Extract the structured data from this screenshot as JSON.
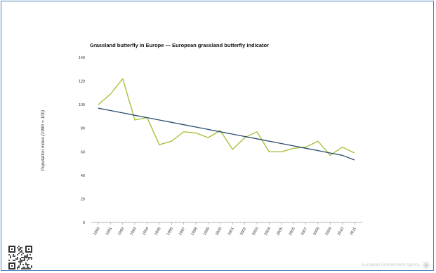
{
  "chart_data": {
    "type": "line",
    "title": "Grassland butterfly in Europe — European grassland butterfly indicator",
    "xlabel": "",
    "ylabel": "Population index (1990 = 100)",
    "ylim": [
      0,
      140
    ],
    "yticks": [
      0,
      20,
      40,
      60,
      80,
      100,
      120,
      140
    ],
    "categories": [
      "1990",
      "1991",
      "1992",
      "1993",
      "1994",
      "1995",
      "1996",
      "1997",
      "1998",
      "1999",
      "2000",
      "2001",
      "2002",
      "2003",
      "2004",
      "2005",
      "2006",
      "2007",
      "2008",
      "2009",
      "2010",
      "2011"
    ],
    "series": [
      {
        "values": [
          100,
          109,
          122,
          87,
          89,
          66,
          69,
          77,
          76,
          72,
          78,
          62,
          72,
          77,
          60,
          60,
          63,
          64,
          69,
          57,
          64,
          59
        ],
        "color": "#a8c13b"
      },
      {
        "values": [
          97,
          95,
          93,
          91,
          89,
          87,
          85,
          83,
          81,
          79,
          77,
          75,
          73,
          71,
          69,
          67,
          65,
          63,
          61,
          59,
          57,
          53
        ],
        "color": "#2b4c6e"
      }
    ],
    "grid": false,
    "legend": "none"
  },
  "footer": {
    "agency": "European Environment Agency"
  }
}
